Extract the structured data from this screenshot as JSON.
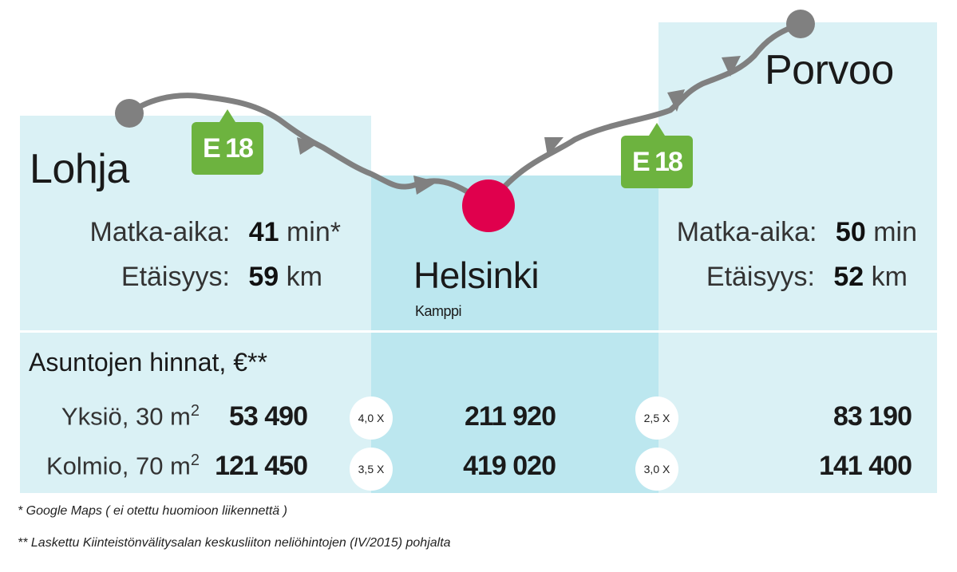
{
  "colors": {
    "panel_light": "#daf1f5",
    "panel_mid": "#bce7ef",
    "route": "#808080",
    "highway_tag": "#6db33f",
    "destination": "#e0004d"
  },
  "cities": {
    "lohja": "Lohja",
    "porvoo": "Porvoo",
    "helsinki": "Helsinki",
    "helsinki_sub": "Kamppi"
  },
  "highway_tag": "E 18",
  "travel": {
    "time_label": "Matka-aika:",
    "dist_label": "Etäisyys:",
    "lohja": {
      "time": "41",
      "time_unit": "min*",
      "dist": "59",
      "dist_unit": "km"
    },
    "porvoo": {
      "time": "50",
      "time_unit": "min",
      "dist": "52",
      "dist_unit": "km"
    }
  },
  "prices": {
    "heading": "Asuntojen hinnat, €**",
    "yksio_label": "Yksiö, 30 m",
    "kolmio_label": "Kolmio, 70 m",
    "area_exp": "2",
    "lohja": {
      "yksio": "53 490",
      "kolmio": "121 450"
    },
    "helsinki": {
      "yksio": "211 920",
      "kolmio": "419 020"
    },
    "porvoo": {
      "yksio": "83 190",
      "kolmio": "141 400"
    },
    "ratios": {
      "lohja_yksio": "4,0 X",
      "lohja_kolmio": "3,5 X",
      "porvoo_yksio": "2,5 X",
      "porvoo_kolmio": "3,0 X"
    }
  },
  "notes": {
    "note1": "* Google Maps ( ei otettu huomioon liikennettä )",
    "note2": "** Laskettu Kiinteistönvälitysalan keskusliiton neliöhintojen (IV/2015) pohjalta"
  }
}
